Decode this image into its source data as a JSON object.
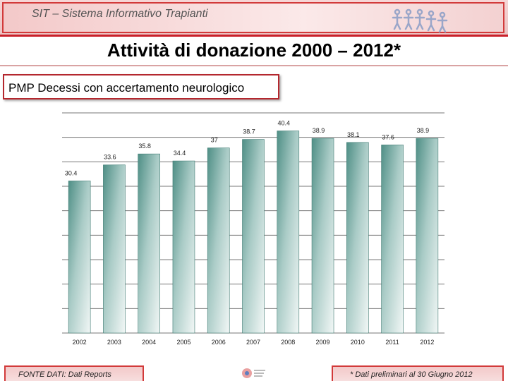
{
  "header": {
    "title": "SIT – Sistema Informativo Trapianti"
  },
  "page": {
    "title": "Attività di donazione  2000 – 2012*"
  },
  "subtitle": "PMP Decessi con accertamento neurologico",
  "footer": {
    "source": "FONTE DATI: Dati Reports",
    "note": "* Dati  preliminari al 30 Giugno 2012"
  },
  "colors": {
    "accent": "#c9202a",
    "bar_dark": "#4f8f86",
    "bar_light": "#f2f7f6"
  },
  "chart_data": {
    "type": "bar",
    "title": "PMP Decessi con accertamento neurologico",
    "categories": [
      "2002",
      "2003",
      "2004",
      "2005",
      "2006",
      "2007",
      "2008",
      "2009",
      "2010",
      "2011",
      "2012"
    ],
    "values": [
      30.4,
      33.6,
      35.8,
      34.4,
      37,
      38.7,
      40.4,
      38.9,
      38.1,
      37.6,
      38.9
    ],
    "value_labels": [
      "30.4",
      "33.6",
      "35.8",
      "34.4",
      "37",
      "38.7",
      "40.4",
      "38.9",
      "38.1",
      "37.6",
      "38.9"
    ],
    "ylim": [
      0,
      44
    ],
    "grid": true,
    "xlabel": "",
    "ylabel": ""
  }
}
